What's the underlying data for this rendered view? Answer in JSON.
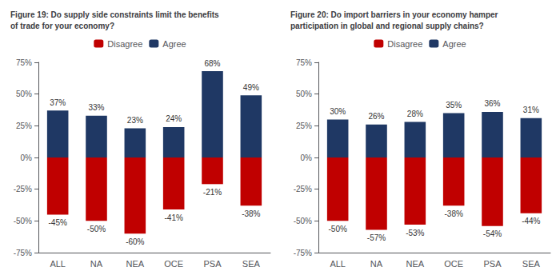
{
  "chart_data": [
    {
      "type": "bar",
      "title": "Figure 19: Do supply side constraints limit the benefits\nof trade for your economy?",
      "categories": [
        "ALL",
        "NA",
        "NEA",
        "OCE",
        "PSA",
        "SEA"
      ],
      "series": [
        {
          "name": "Agree",
          "color": "#1F3864",
          "values": [
            37,
            33,
            23,
            24,
            68,
            49
          ],
          "value_labels": [
            "37%",
            "33%",
            "23%",
            "24%",
            "68%",
            "49%"
          ]
        },
        {
          "name": "Disagree",
          "color": "#C00000",
          "values": [
            -45,
            -50,
            -60,
            -41,
            -21,
            -38
          ],
          "value_labels": [
            "-45%",
            "-50%",
            "-60%",
            "-41%",
            "-21%",
            "-38%"
          ]
        }
      ],
      "ylim": [
        -75,
        75
      ],
      "yticks": [
        {
          "value": -75,
          "label": "-75%"
        },
        {
          "value": -50,
          "label": "-50%"
        },
        {
          "value": -25,
          "label": "-25%"
        },
        {
          "value": 0,
          "label": "0%"
        },
        {
          "value": 25,
          "label": "25%"
        },
        {
          "value": 50,
          "label": "50%"
        },
        {
          "value": 75,
          "label": "75%"
        }
      ],
      "grid": false,
      "legend": "top",
      "data_labels": true
    },
    {
      "type": "bar",
      "title": "Figure 20: Do import barriers in your economy hamper\nparticipation in global and regional supply chains?",
      "categories": [
        "ALL",
        "NA",
        "NEA",
        "OCE",
        "PSA",
        "SEA"
      ],
      "series": [
        {
          "name": "Agree",
          "color": "#1F3864",
          "values": [
            30,
            26,
            28,
            35,
            36,
            31
          ],
          "value_labels": [
            "30%",
            "26%",
            "28%",
            "35%",
            "36%",
            "31%"
          ]
        },
        {
          "name": "Disagree",
          "color": "#C00000",
          "values": [
            -50,
            -57,
            -53,
            -38,
            -54,
            -44
          ],
          "value_labels": [
            "-50%",
            "-57%",
            "-53%",
            "-38%",
            "-54%",
            "-44%"
          ]
        }
      ],
      "ylim": [
        -75,
        75
      ],
      "yticks": [
        {
          "value": -75,
          "label": "-75%"
        },
        {
          "value": -50,
          "label": "-50%"
        },
        {
          "value": -25,
          "label": "-25%"
        },
        {
          "value": 0,
          "label": "0%"
        },
        {
          "value": 25,
          "label": "25%"
        },
        {
          "value": 50,
          "label": "50%"
        },
        {
          "value": 75,
          "label": "75%"
        }
      ],
      "grid": false,
      "legend": "top",
      "data_labels": true
    }
  ]
}
